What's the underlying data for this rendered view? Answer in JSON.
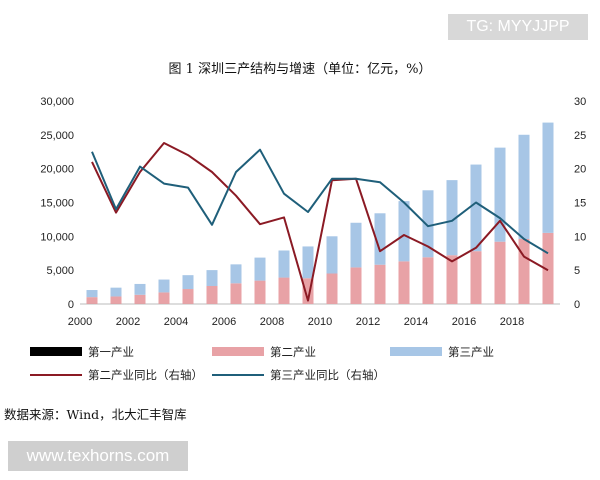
{
  "watermark_top": "TG: MYYJJPP",
  "watermark_bottom": "www.texhorns.com",
  "source_note": "数据来源：Wind，北大汇丰智库",
  "colors": {
    "primary_bar": "#000000",
    "secondary_bar": "#e8a2a6",
    "tertiary_bar": "#a7c6e6",
    "secondary_growth_line": "#8b1a24",
    "tertiary_growth_line": "#1f5f7a"
  },
  "chart_data": {
    "type": "bar",
    "title": "图 1  深圳三产结构与增速（单位：亿元，%）",
    "stacked": true,
    "x": [
      2000,
      2001,
      2002,
      2003,
      2004,
      2005,
      2006,
      2007,
      2008,
      2009,
      2010,
      2011,
      2012,
      2013,
      2014,
      2015,
      2016,
      2017,
      2018,
      2019
    ],
    "x_tick_labels": [
      "2000",
      "2002",
      "2004",
      "2006",
      "2008",
      "2010",
      "2012",
      "2014",
      "2016",
      "2018"
    ],
    "ylim_left": [
      0,
      30000
    ],
    "ylim_right": [
      0,
      30
    ],
    "y_left_ticks": [
      "0",
      "5,000",
      "10,000",
      "15,000",
      "20,000",
      "25,000",
      "30,000"
    ],
    "y_right_ticks": [
      "0",
      "5",
      "10",
      "15",
      "20",
      "25",
      "30"
    ],
    "grid": false,
    "legend_position": "bottom",
    "series": [
      {
        "name": "第一产业",
        "kind": "bar",
        "axis": "left",
        "values": [
          15,
          15,
          14,
          13,
          12,
          10,
          8,
          7,
          7,
          7,
          6,
          6,
          6,
          6,
          6,
          6,
          7,
          9,
          9,
          9
        ]
      },
      {
        "name": "第二产业",
        "kind": "bar",
        "axis": "left",
        "values": [
          1000,
          1100,
          1350,
          1700,
          2200,
          2650,
          3050,
          3450,
          3900,
          3800,
          4500,
          5400,
          5800,
          6300,
          6900,
          7200,
          7800,
          9200,
          9600,
          10500
        ]
      },
      {
        "name": "第三产业",
        "kind": "bar",
        "axis": "left",
        "values": [
          1050,
          1300,
          1600,
          1900,
          2050,
          2350,
          2800,
          3400,
          4000,
          4700,
          5500,
          6600,
          7600,
          8900,
          9900,
          11100,
          12800,
          13900,
          15400,
          16300
        ]
      },
      {
        "name": "第二产业同比（右轴）",
        "kind": "line",
        "axis": "right",
        "values": [
          21,
          13.5,
          19.5,
          23.8,
          22,
          19.5,
          16,
          11.8,
          12.8,
          0.5,
          18.3,
          18.5,
          7.8,
          10.2,
          8.5,
          6.3,
          8.3,
          12.3,
          7,
          5
        ]
      },
      {
        "name": "第三产业同比（右轴）",
        "kind": "line",
        "axis": "right",
        "values": [
          22.5,
          14,
          20.3,
          17.8,
          17.2,
          11.7,
          19.5,
          22.8,
          16.3,
          13.6,
          18.5,
          18.5,
          18,
          15,
          11.5,
          12.3,
          15,
          12.7,
          9.6,
          7.5
        ]
      }
    ]
  }
}
